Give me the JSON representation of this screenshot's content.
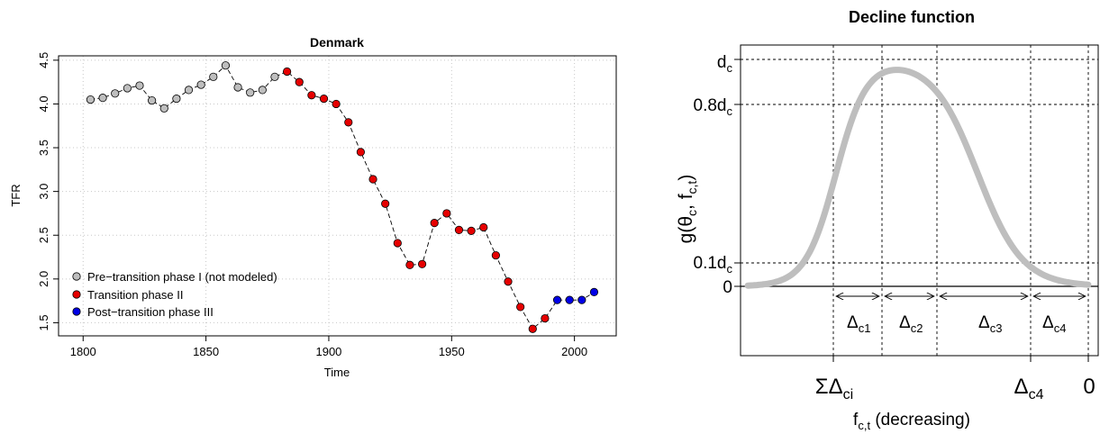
{
  "chart_data": [
    {
      "type": "scatter",
      "title": "Denmark",
      "xlabel": "Time",
      "ylabel": "TFR",
      "xlim": [
        1790,
        2017
      ],
      "ylim": [
        1.35,
        4.55
      ],
      "x_ticks": [
        1800,
        1850,
        1900,
        1950,
        2000
      ],
      "y_ticks": [
        1.5,
        2.0,
        2.5,
        3.0,
        3.5,
        4.0,
        4.5
      ],
      "grid": true,
      "legend_position": "bottom-left",
      "series": [
        {
          "name": "Pre−transition phase I (not modeled)",
          "color": "#bebebe",
          "x": [
            1803,
            1808,
            1813,
            1818,
            1823,
            1828,
            1833,
            1838,
            1843,
            1848,
            1853,
            1858,
            1863,
            1868,
            1873,
            1878
          ],
          "y": [
            4.05,
            4.07,
            4.12,
            4.18,
            4.21,
            4.04,
            3.95,
            4.06,
            4.16,
            4.22,
            4.31,
            4.44,
            4.19,
            4.13,
            4.16,
            4.31
          ]
        },
        {
          "name": "Transition phase II",
          "color": "#e60000",
          "x": [
            1883,
            1888,
            1893,
            1898,
            1903,
            1908,
            1913,
            1918,
            1923,
            1928,
            1933,
            1938,
            1943,
            1948,
            1953,
            1958,
            1963,
            1968,
            1973,
            1978,
            1983,
            1988
          ],
          "y": [
            4.37,
            4.25,
            4.1,
            4.06,
            4.0,
            3.79,
            3.45,
            3.14,
            2.86,
            2.41,
            2.16,
            2.17,
            2.64,
            2.75,
            2.56,
            2.55,
            2.59,
            2.27,
            1.97,
            1.68,
            1.43,
            1.55
          ]
        },
        {
          "name": "Post−transition phase III",
          "color": "#0000e6",
          "x": [
            1993,
            1998,
            2003,
            2008
          ],
          "y": [
            1.76,
            1.76,
            1.76,
            1.85
          ]
        }
      ]
    },
    {
      "type": "line",
      "title": "Decline function",
      "xlabel": "f_c,t (decreasing)",
      "ylabel": "g(θ_c, f_c,t)",
      "y_tick_labels": [
        "d_c",
        "0.8d_c",
        "0.1d_c",
        "0"
      ],
      "x_tick_labels": [
        "ΣΔ_ci",
        "Δ_c4",
        "0"
      ],
      "interval_labels": [
        "Δ_c1",
        "Δ_c2",
        "Δ_c3",
        "Δ_c4"
      ],
      "curve_color": "#bebebe"
    }
  ],
  "denmark": {
    "title": "Denmark",
    "xlabel": "Time",
    "ylabel": "TFR",
    "x_tick_labels": [
      "1800",
      "1850",
      "1900",
      "1950",
      "2000"
    ],
    "y_tick_labels": [
      "1.5",
      "2.0",
      "2.5",
      "3.0",
      "3.5",
      "4.0",
      "4.5"
    ],
    "legend": [
      "Pre−transition phase I (not modeled)",
      "Transition phase II",
      "Post−transition phase III"
    ]
  },
  "decline": {
    "title": "Decline function",
    "ylabel_g": "g(",
    "ylabel_theta": "θ",
    "ylabel_c": "c",
    "ylabel_comma_f": ", f",
    "ylabel_ct": "c,t",
    "ylabel_close": ")",
    "ytick_dc_main": "d",
    "ytick_dc_sub": "c",
    "ytick_08_main": "0.8d",
    "ytick_08_sub": "c",
    "ytick_01_main": "0.1d",
    "ytick_01_sub": "c",
    "ytick_zero": "0",
    "delta": "Δ",
    "sub_c1": "c1",
    "sub_c2": "c2",
    "sub_c3": "c3",
    "sub_c4": "c4",
    "xtick_sigma": "ΣΔ",
    "xtick_sigma_sub": "ci",
    "xtick_c4_main": "Δ",
    "xtick_c4_sub": "c4",
    "xtick_zero": "0",
    "xlabel_main": "f",
    "xlabel_sub": "c,t",
    "xlabel_rest": " (decreasing)"
  }
}
